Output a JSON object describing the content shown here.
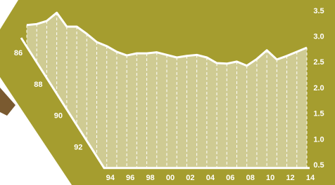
{
  "chart_data": {
    "type": "area",
    "categories": [
      "86",
      null,
      "88",
      null,
      "90",
      null,
      "92",
      null,
      "94",
      null,
      "96",
      null,
      "98",
      null,
      "00",
      null,
      "02",
      null,
      "04",
      null,
      "06",
      null,
      "08",
      null,
      "10",
      null,
      "12",
      null,
      "14"
    ],
    "values": [
      3.23,
      3.25,
      3.31,
      3.47,
      3.2,
      3.2,
      3.06,
      2.9,
      2.82,
      2.71,
      2.64,
      2.68,
      2.68,
      2.7,
      2.65,
      2.6,
      2.63,
      2.65,
      2.6,
      2.49,
      2.48,
      2.52,
      2.44,
      2.57,
      2.74,
      2.56,
      2.63,
      2.71,
      2.79
    ],
    "color": "#cfcb93",
    "ylim": [
      0.45,
      3.55
    ],
    "yticks": [
      0.5,
      {
        "value": 1,
        "label": "1.0"
      },
      1.5,
      {
        "value": 2,
        "label": "2.0"
      },
      2.5,
      {
        "value": 3,
        "label": "3.0"
      },
      3.5
    ]
  }
}
